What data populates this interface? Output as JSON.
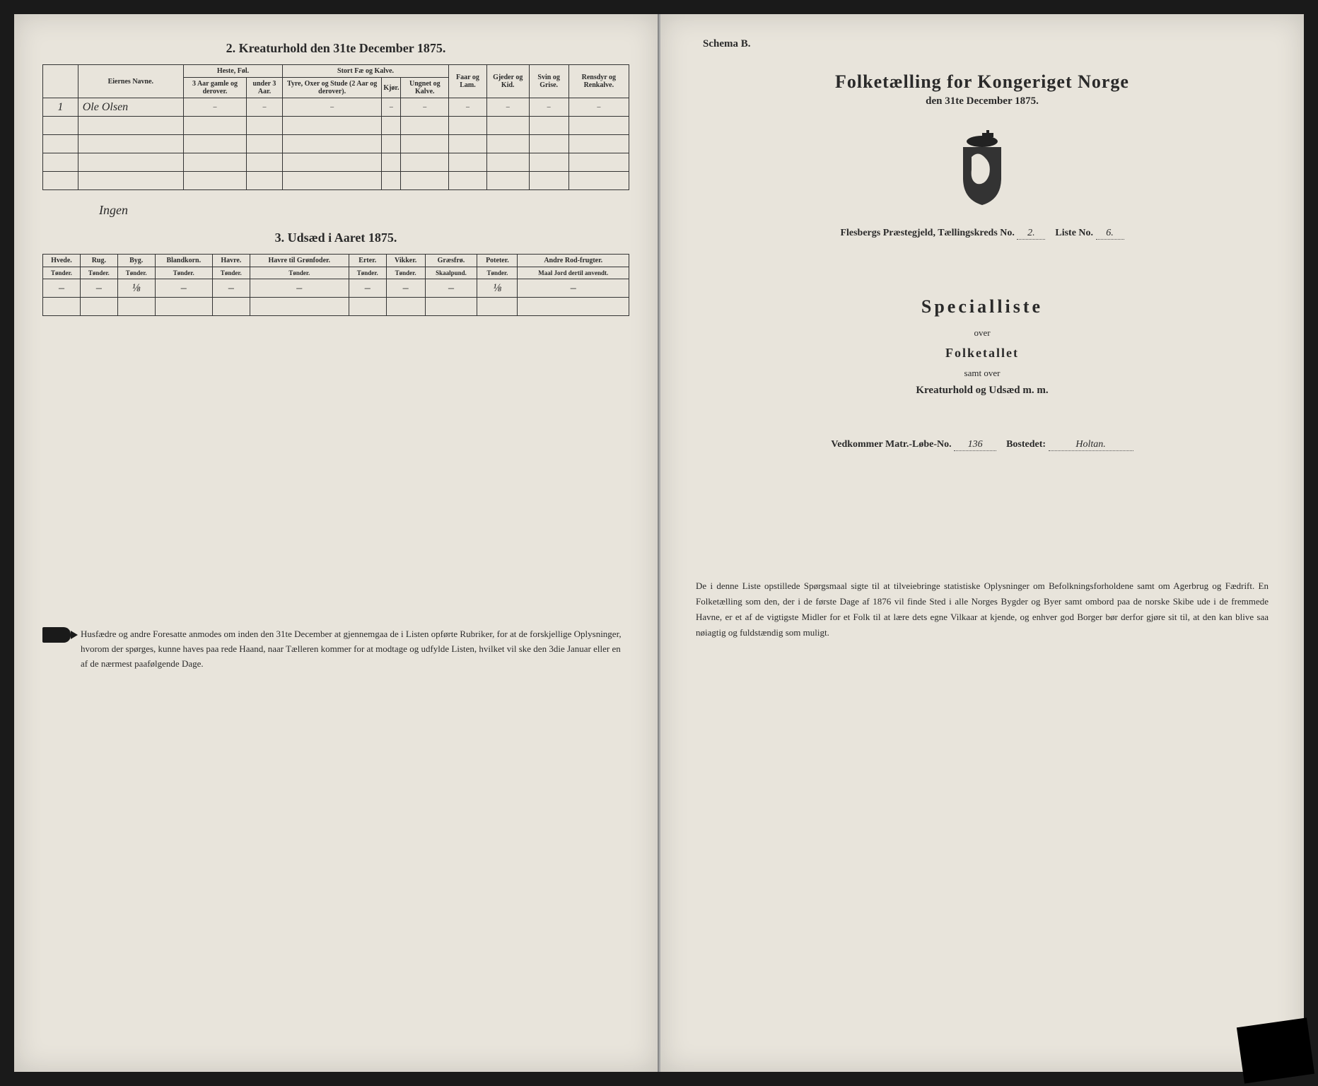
{
  "left": {
    "section2_title": "2. Kreaturhold den 31te December 1875.",
    "table2": {
      "col_eier": "Eiernes Navne.",
      "grp_heste": "Heste, Føl.",
      "col_heste_a": "3 Aar gamle og derover.",
      "col_heste_b": "under 3 Aar.",
      "grp_stort": "Stort Fæ og Kalve.",
      "col_stort_a": "Tyre, Oxer og Stude (2 Aar og derover).",
      "col_stort_b": "Kjør.",
      "col_stort_c": "Ungnet og Kalve.",
      "col_faar": "Faar og Lam.",
      "col_gjed": "Gjeder og Kid.",
      "col_svin": "Svin og Grise.",
      "col_rens": "Rensdyr og Renkalve.",
      "row1_name": "Ole Olsen",
      "note": "Ingen"
    },
    "section3_title": "3. Udsæd i Aaret 1875.",
    "table3": {
      "cols": [
        {
          "h": "Hvede.",
          "s": "Tønder."
        },
        {
          "h": "Rug.",
          "s": "Tønder."
        },
        {
          "h": "Byg.",
          "s": "Tønder."
        },
        {
          "h": "Blandkorn.",
          "s": "Tønder."
        },
        {
          "h": "Havre.",
          "s": "Tønder."
        },
        {
          "h": "Havre til Grønfoder.",
          "s": "Tønder."
        },
        {
          "h": "Erter.",
          "s": "Tønder."
        },
        {
          "h": "Vikker.",
          "s": "Tønder."
        },
        {
          "h": "Græsfrø.",
          "s": "Skaalpund."
        },
        {
          "h": "Poteter.",
          "s": "Tønder."
        },
        {
          "h": "Andre Rod-frugter.",
          "s": "Maal Jord dertil anvendt."
        }
      ],
      "row": [
        "–",
        "–",
        "⅛",
        "–",
        "–",
        "–",
        "–",
        "–",
        "–",
        "⅛",
        "–"
      ]
    },
    "footnote": "Husfædre og andre Foresatte anmodes om inden den 31te December at gjennemgaa de i Listen opførte Rubriker, for at de forskjellige Oplysninger, hvorom der spørges, kunne haves paa rede Haand, naar Tælleren kommer for at modtage og udfylde Listen, hvilket vil ske den 3die Januar eller en af de nærmest paafølgende Dage."
  },
  "right": {
    "schema": "Schema B.",
    "title": "Folketælling for Kongeriget Norge",
    "subtitle": "den 31te December 1875.",
    "line_parish_label": "Flesbergs Præstegjeld, Tællingskreds No.",
    "line_kreds_val": "2.",
    "line_liste_label": "Liste No.",
    "line_liste_val": "6.",
    "special": "Specialliste",
    "over1": "over",
    "folket": "Folketallet",
    "over2": "samt over",
    "kreat": "Kreaturhold og Udsæd m. m.",
    "ved_label": "Vedkommer Matr.-Løbe-No.",
    "ved_no": "136",
    "bostedet_label": "Bostedet:",
    "bostedet_val": "Holtan.",
    "bottom": "De i denne Liste opstillede Spørgsmaal sigte til at tilveiebringe statistiske Oplysninger om Befolkningsforholdene samt om Agerbrug og Fædrift. En Folketælling som den, der i de første Dage af 1876 vil finde Sted i alle Norges Bygder og Byer samt ombord paa de norske Skibe ude i de fremmede Havne, er et af de vigtigste Midler for et Folk til at lære dets egne Vilkaar at kjende, og enhver god Borger bør derfor gjøre sit til, at den kan blive saa nøiagtig og fuldstændig som muligt."
  }
}
